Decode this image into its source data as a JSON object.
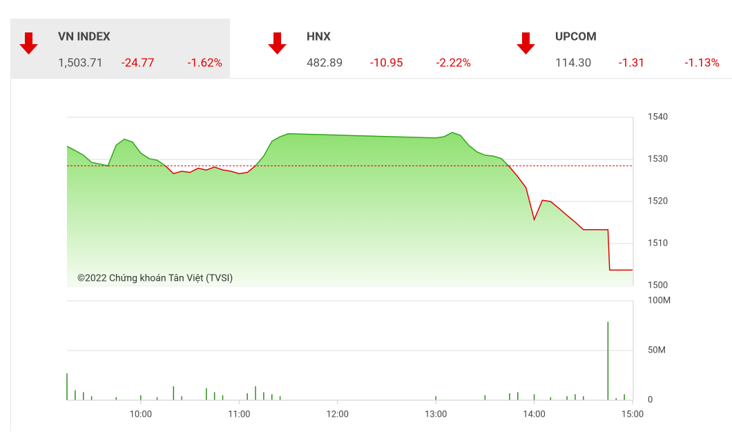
{
  "indices": [
    {
      "name": "VN INDEX",
      "value": "1,503.71",
      "change": "-24.77",
      "percent": "-1.62%"
    },
    {
      "name": "HNX",
      "value": "482.89",
      "change": "-10.95",
      "percent": "-2.22%"
    },
    {
      "name": "UPCOM",
      "value": "114.30",
      "change": "-1.31",
      "percent": "-1.13%"
    }
  ],
  "chart_data": [
    {
      "type": "line",
      "annotation": "©2022 Chứng khoán Tân Việt (TVSI)",
      "color": "#2fa51c",
      "down_color": "#e00000",
      "reference": 1528.48,
      "x": [
        "9:15",
        "9:20",
        "9:25",
        "9:30",
        "9:35",
        "9:40",
        "9:45",
        "9:50",
        "9:55",
        "10:00",
        "10:05",
        "10:10",
        "10:15",
        "10:20",
        "10:25",
        "10:30",
        "10:35",
        "10:40",
        "10:45",
        "10:50",
        "10:55",
        "11:00",
        "11:05",
        "11:10",
        "11:15",
        "11:20",
        "11:25",
        "11:30",
        "13:00",
        "13:05",
        "13:10",
        "13:15",
        "13:20",
        "13:25",
        "13:30",
        "13:35",
        "13:40",
        "13:45",
        "13:50",
        "13:55",
        "14:00",
        "14:05",
        "14:10",
        "14:15",
        "14:20",
        "14:25",
        "14:30",
        "14:45",
        "14:46",
        "15:00"
      ],
      "values": [
        1533.1,
        1532.1,
        1531,
        1529.3,
        1528.9,
        1528.5,
        1533.4,
        1534.8,
        1534.1,
        1531.5,
        1530.2,
        1529.8,
        1528.5,
        1526.6,
        1527.2,
        1526.9,
        1527.9,
        1527.5,
        1528.2,
        1527.5,
        1527.2,
        1526.6,
        1526.9,
        1528.5,
        1530.8,
        1534.3,
        1535.4,
        1536.1,
        1535.1,
        1535.4,
        1536.4,
        1535.7,
        1533.4,
        1531.8,
        1531,
        1530.8,
        1530.2,
        1528.2,
        1525.9,
        1523.3,
        1515.7,
        1520.3,
        1520,
        1518.4,
        1516.7,
        1515.1,
        1513.3,
        1513.3,
        1503.7,
        1503.71
      ],
      "xlim": [
        "9:15",
        "15:00"
      ],
      "ylim": [
        1500,
        1540
      ],
      "yticks": [
        1500,
        1510,
        1520,
        1530,
        1540
      ],
      "grid": true
    },
    {
      "type": "bar",
      "color": "#2e8b1e",
      "x": [
        "9:15",
        "9:20",
        "9:25",
        "9:30",
        "9:45",
        "10:00",
        "10:10",
        "10:20",
        "10:25",
        "10:40",
        "10:45",
        "10:50",
        "11:05",
        "11:10",
        "11:15",
        "11:20",
        "11:25",
        "13:00",
        "13:30",
        "13:45",
        "13:50",
        "14:00",
        "14:10",
        "14:20",
        "14:25",
        "14:30",
        "14:45",
        "14:50",
        "14:55"
      ],
      "values": [
        27,
        10,
        8,
        4,
        3,
        5,
        3,
        14,
        4,
        12,
        8,
        5,
        7,
        14,
        8,
        6,
        4,
        4,
        5,
        7,
        8,
        6,
        3,
        4,
        6,
        4,
        79,
        2,
        6
      ],
      "xlim": [
        "9:15",
        "15:00"
      ],
      "ylim": [
        0,
        100
      ],
      "yticks": [
        0,
        {
          "value": 50,
          "label": "50M"
        },
        {
          "value": 100,
          "label": "100M"
        }
      ],
      "xticks": [
        "10:00",
        "11:00",
        "12:00",
        "13:00",
        "14:00",
        "15:00"
      ],
      "grid": true
    }
  ]
}
